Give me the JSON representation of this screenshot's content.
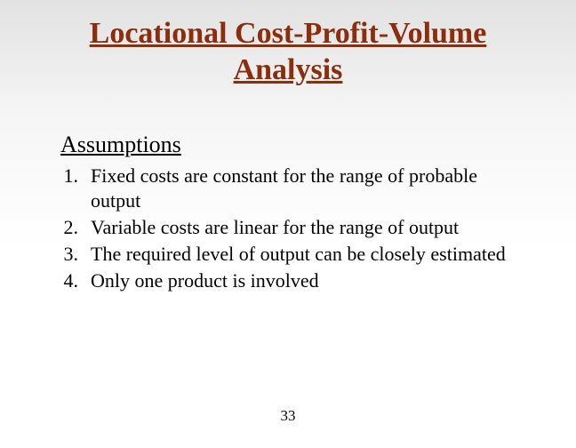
{
  "title": "Locational Cost-Profit-Volume Analysis",
  "subtitle": "Assumptions",
  "items": [
    {
      "num": "1.",
      "text": "Fixed costs are constant for the range of probable output"
    },
    {
      "num": "2.",
      "text": "Variable costs are linear for the range of output"
    },
    {
      "num": "3.",
      "text": "The required level of output can be closely estimated"
    },
    {
      "num": "4.",
      "text": "Only one product is involved"
    }
  ],
  "page_number": "33",
  "colors": {
    "title_color": "#8a2e0e",
    "text_color": "#000000",
    "bg_top": "#e2e2e2",
    "bg_bottom": "#ffffff"
  },
  "typography": {
    "title_fontsize": 34,
    "subtitle_fontsize": 26,
    "body_fontsize": 22,
    "pagenum_fontsize": 17,
    "font_family": "Times New Roman"
  }
}
